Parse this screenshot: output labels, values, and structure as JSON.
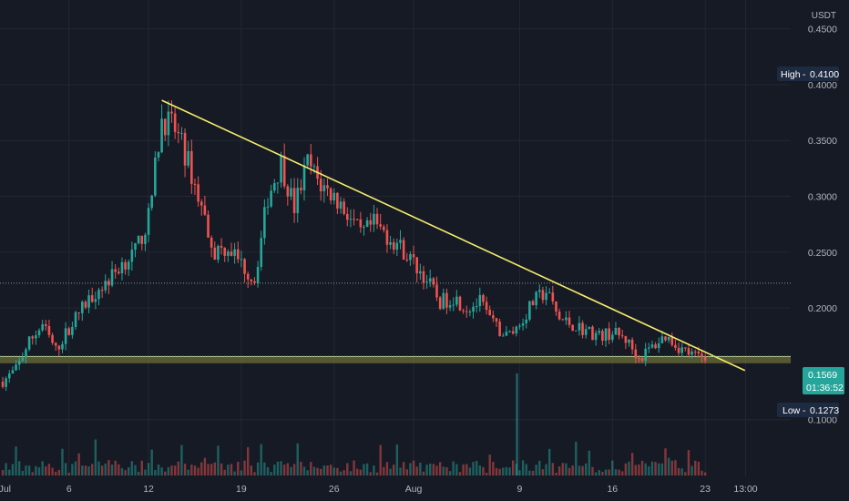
{
  "colors": {
    "background": "#161a25",
    "grid": "#232733",
    "up": "#26a69a",
    "down": "#ef5350",
    "trendline": "#f5ec6a",
    "zone_fill": "#7a7a3a",
    "axis_text": "#b2b5be",
    "badge_dark": "#1e2a3f",
    "price_badge": "#26a69a"
  },
  "chart_data": {
    "type": "candlestick",
    "quote_currency": "USDT",
    "x_tick_labels": [
      "Jul",
      "6",
      "12",
      "19",
      "26",
      "Aug",
      "9",
      "16",
      "23",
      "13:00"
    ],
    "y_tick_labels": [
      "0.4500",
      "0.4000",
      "0.3500",
      "0.3000",
      "0.2500",
      "0.2000",
      "0.1000"
    ],
    "y_range": [
      0.05,
      0.475
    ],
    "high": {
      "label": "High",
      "value": "0.4100"
    },
    "low": {
      "label": "Low",
      "value": "0.1273"
    },
    "last_price": {
      "value": "0.1569",
      "countdown": "01:36:52"
    },
    "dotted_level": 0.2222,
    "support_zone": [
      0.1505,
      0.1565
    ],
    "trendline": {
      "from": {
        "date": "2021-07-13",
        "price": 0.386
      },
      "to": {
        "date": "2021-08-26",
        "price": 0.144
      }
    },
    "price_path": [
      [
        "2021-07-01",
        0.134
      ],
      [
        "2021-07-02",
        0.145
      ],
      [
        "2021-07-03",
        0.17
      ],
      [
        "2021-07-04",
        0.185
      ],
      [
        "2021-07-05",
        0.162
      ],
      [
        "2021-07-06",
        0.182
      ],
      [
        "2021-07-07",
        0.2
      ],
      [
        "2021-07-08",
        0.215
      ],
      [
        "2021-07-09",
        0.225
      ],
      [
        "2021-07-10",
        0.24
      ],
      [
        "2021-07-11",
        0.25
      ],
      [
        "2021-07-12",
        0.28
      ],
      [
        "2021-07-13",
        0.37
      ],
      [
        "2021-07-14",
        0.36
      ],
      [
        "2021-07-15",
        0.33
      ],
      [
        "2021-07-16",
        0.29
      ],
      [
        "2021-07-17",
        0.25
      ],
      [
        "2021-07-18",
        0.255
      ],
      [
        "2021-07-19",
        0.24
      ],
      [
        "2021-07-20",
        0.225
      ],
      [
        "2021-07-21",
        0.3
      ],
      [
        "2021-07-22",
        0.33
      ],
      [
        "2021-07-23",
        0.29
      ],
      [
        "2021-07-24",
        0.33
      ],
      [
        "2021-07-25",
        0.31
      ],
      [
        "2021-07-26",
        0.3
      ],
      [
        "2021-07-27",
        0.285
      ],
      [
        "2021-07-28",
        0.265
      ],
      [
        "2021-07-29",
        0.275
      ],
      [
        "2021-07-30",
        0.265
      ],
      [
        "2021-07-31",
        0.255
      ],
      [
        "2021-08-01",
        0.24
      ],
      [
        "2021-08-02",
        0.225
      ],
      [
        "2021-08-03",
        0.205
      ],
      [
        "2021-08-04",
        0.21
      ],
      [
        "2021-08-05",
        0.2
      ],
      [
        "2021-08-06",
        0.205
      ],
      [
        "2021-08-07",
        0.185
      ],
      [
        "2021-08-08",
        0.175
      ],
      [
        "2021-08-09",
        0.185
      ],
      [
        "2021-08-10",
        0.205
      ],
      [
        "2021-08-11",
        0.215
      ],
      [
        "2021-08-12",
        0.19
      ],
      [
        "2021-08-13",
        0.185
      ],
      [
        "2021-08-14",
        0.18
      ],
      [
        "2021-08-15",
        0.175
      ],
      [
        "2021-08-16",
        0.178
      ],
      [
        "2021-08-17",
        0.172
      ],
      [
        "2021-08-18",
        0.155
      ],
      [
        "2021-08-19",
        0.165
      ],
      [
        "2021-08-20",
        0.175
      ],
      [
        "2021-08-21",
        0.165
      ],
      [
        "2021-08-22",
        0.158
      ],
      [
        "2021-08-23",
        0.155
      ]
    ]
  }
}
